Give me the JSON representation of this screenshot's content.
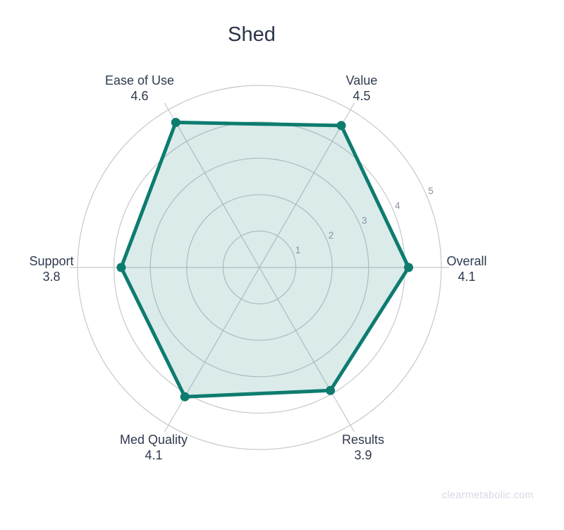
{
  "chart_data": {
    "type": "radar",
    "title": "Shed",
    "categories": [
      "Overall",
      "Value",
      "Ease of Use",
      "Support",
      "Med Quality",
      "Results"
    ],
    "values": [
      4.1,
      4.5,
      4.6,
      3.8,
      4.1,
      3.9
    ],
    "axes": [
      {
        "label": "Overall",
        "value": 4.1,
        "angle": 0
      },
      {
        "label": "Value",
        "value": 4.5,
        "angle": 60
      },
      {
        "label": "Ease of Use",
        "value": 4.6,
        "angle": 120
      },
      {
        "label": "Support",
        "value": 3.8,
        "angle": 180
      },
      {
        "label": "Med Quality",
        "value": 4.1,
        "angle": 240
      },
      {
        "label": "Results",
        "value": 3.9,
        "angle": 300
      }
    ],
    "radial_ticks": [
      1,
      2,
      3,
      4,
      5
    ],
    "radial_range": [
      0,
      5
    ],
    "grid": true,
    "legend": "none",
    "colors": {
      "line": "#0d7c6f",
      "fill": "rgba(13,124,111,0.15)",
      "grid": "#c6c8ca",
      "axis_label": "#2e3a4f",
      "tick_label": "#8c90a4",
      "title": "#2b3447",
      "watermark": "#d5d9e4"
    }
  },
  "watermark": "clearmetabolic.com"
}
